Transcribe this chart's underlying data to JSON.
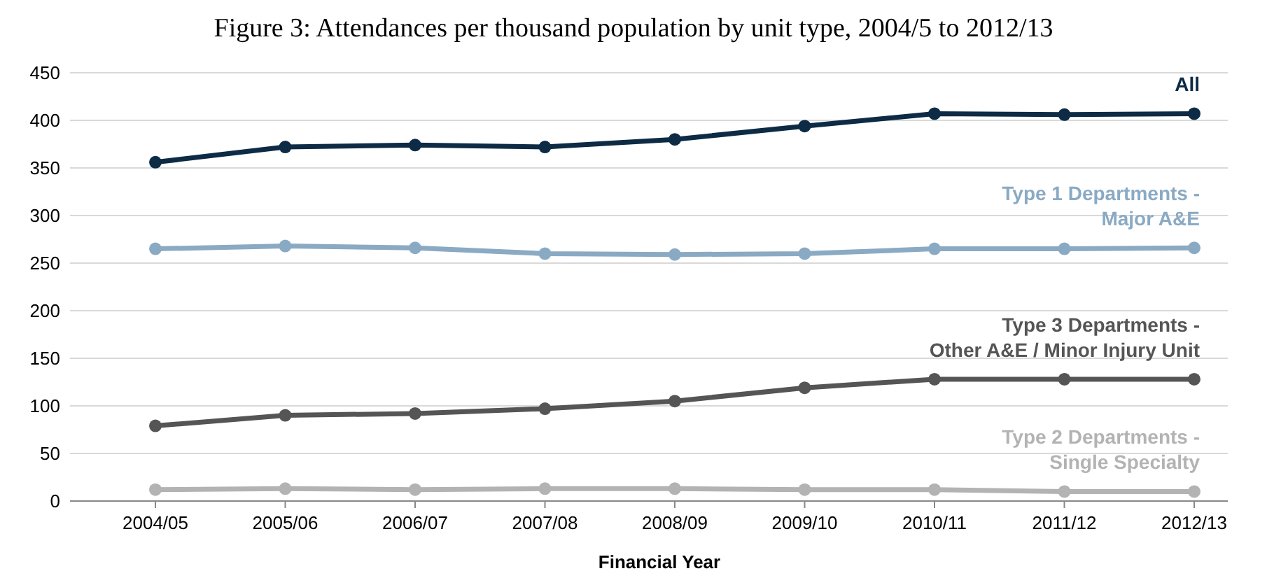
{
  "chart_data": {
    "type": "line",
    "title": "Figure 3: Attendances per thousand population by unit type, 2004/5 to 2012/13",
    "xlabel": "Financial Year",
    "categories": [
      "2004/05",
      "2005/06",
      "2006/07",
      "2007/08",
      "2008/09",
      "2009/10",
      "2010/11",
      "2011/12",
      "2012/13"
    ],
    "series": [
      {
        "name": "All",
        "color": "#0d2b45",
        "values": [
          356,
          372,
          374,
          372,
          380,
          394,
          407,
          406,
          407
        ]
      },
      {
        "name": "Type 1 Departments -\nMajor A&E",
        "color": "#8aaac4",
        "values": [
          265,
          268,
          266,
          260,
          259,
          260,
          265,
          265,
          266
        ]
      },
      {
        "name": "Type 3 Departments -\nOther A&E / Minor Injury Unit",
        "color": "#555555",
        "values": [
          79,
          90,
          92,
          97,
          105,
          119,
          128,
          128,
          128
        ]
      },
      {
        "name": "Type 2 Departments -\nSingle Specialty",
        "color": "#b3b3b3",
        "values": [
          12,
          13,
          12,
          13,
          13,
          12,
          12,
          10,
          10
        ]
      }
    ],
    "ylim": [
      0,
      450
    ],
    "yticks": [
      0,
      50,
      100,
      150,
      200,
      250,
      300,
      350,
      400,
      450
    ],
    "grid": "y",
    "marker": "circle",
    "line_style": "solid"
  }
}
